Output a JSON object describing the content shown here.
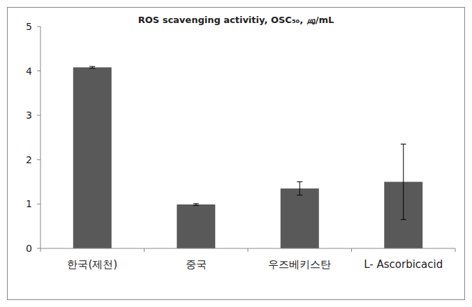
{
  "chart_data": {
    "type": "bar",
    "title": "ROS scavenging activitiy, OSC₅₀, ㎍/mL",
    "categories": [
      "한국(제천)",
      "중국",
      "우즈베키스탄",
      "L- Ascorbicacid"
    ],
    "values": [
      4.08,
      0.99,
      1.35,
      1.5
    ],
    "errors": [
      0.02,
      0.02,
      0.15,
      0.85
    ],
    "color": "#595959",
    "ylim": [
      0,
      5
    ],
    "yticks": [
      0,
      1,
      2,
      3,
      4,
      5
    ],
    "grid": false
  }
}
